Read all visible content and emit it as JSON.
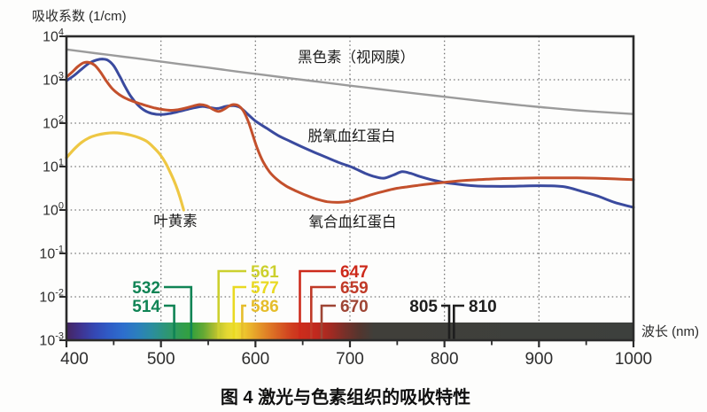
{
  "chart_data": {
    "type": "line",
    "title": "图 4 激光与色素组织的吸收特性",
    "xlabel": "波长 (nm)",
    "ylabel": "吸收系数 (1/cm)",
    "x_range": [
      400,
      1000
    ],
    "y_scale": "log",
    "y_range": [
      0.001,
      10000
    ],
    "x_ticks": [
      400,
      500,
      600,
      700,
      800,
      900,
      1000
    ],
    "x_minor_ticks": [
      450,
      550,
      650,
      750,
      850,
      950
    ],
    "y_tick_exponents": [
      4,
      3,
      2,
      1,
      0,
      -1,
      -2,
      -3
    ],
    "grid": "dotted",
    "series": [
      {
        "id": "melanin",
        "label": "黑色素（视网膜）",
        "color": "#9b9b9b",
        "stroke_width": 2.4,
        "points": [
          [
            400,
            5000
          ],
          [
            430,
            4100
          ],
          [
            460,
            3400
          ],
          [
            490,
            2800
          ],
          [
            520,
            2300
          ],
          [
            550,
            1900
          ],
          [
            580,
            1550
          ],
          [
            610,
            1280
          ],
          [
            640,
            1060
          ],
          [
            670,
            880
          ],
          [
            700,
            730
          ],
          [
            730,
            610
          ],
          [
            760,
            510
          ],
          [
            790,
            430
          ],
          [
            820,
            360
          ],
          [
            850,
            305
          ],
          [
            880,
            260
          ],
          [
            910,
            225
          ],
          [
            940,
            198
          ],
          [
            970,
            178
          ],
          [
            1000,
            162
          ]
        ]
      },
      {
        "id": "deoxyhemoglobin",
        "label": "脱氧血红蛋白",
        "color": "#3a4a9e",
        "stroke_width": 3,
        "points": [
          [
            400,
            950
          ],
          [
            408,
            1250
          ],
          [
            416,
            1750
          ],
          [
            424,
            2400
          ],
          [
            432,
            2850
          ],
          [
            438,
            3000
          ],
          [
            444,
            2800
          ],
          [
            450,
            2100
          ],
          [
            456,
            1250
          ],
          [
            462,
            700
          ],
          [
            468,
            420
          ],
          [
            475,
            270
          ],
          [
            482,
            200
          ],
          [
            490,
            168
          ],
          [
            500,
            158
          ],
          [
            510,
            168
          ],
          [
            520,
            188
          ],
          [
            532,
            218
          ],
          [
            543,
            242
          ],
          [
            552,
            228
          ],
          [
            560,
            218
          ],
          [
            569,
            244
          ],
          [
            577,
            252
          ],
          [
            584,
            228
          ],
          [
            591,
            168
          ],
          [
            600,
            112
          ],
          [
            612,
            76
          ],
          [
            624,
            52
          ],
          [
            637,
            38
          ],
          [
            650,
            28
          ],
          [
            663,
            21
          ],
          [
            676,
            16
          ],
          [
            690,
            12
          ],
          [
            703,
            9.5
          ],
          [
            716,
            7
          ],
          [
            727,
            5.8
          ],
          [
            736,
            5.4
          ],
          [
            746,
            6.4
          ],
          [
            755,
            7.6
          ],
          [
            764,
            7
          ],
          [
            774,
            5.9
          ],
          [
            786,
            5
          ],
          [
            800,
            4.3
          ],
          [
            815,
            3.9
          ],
          [
            832,
            3.6
          ],
          [
            850,
            3.5
          ],
          [
            870,
            3.5
          ],
          [
            890,
            3.6
          ],
          [
            910,
            3.6
          ],
          [
            928,
            3.4
          ],
          [
            945,
            2.7
          ],
          [
            962,
            2.1
          ],
          [
            980,
            1.5
          ],
          [
            1000,
            1.15
          ]
        ]
      },
      {
        "id": "oxyhemoglobin",
        "label": "氧合血红蛋白",
        "color": "#c3502c",
        "stroke_width": 3,
        "points": [
          [
            400,
            1150
          ],
          [
            406,
            1500
          ],
          [
            412,
            2000
          ],
          [
            418,
            2450
          ],
          [
            424,
            2500
          ],
          [
            430,
            2150
          ],
          [
            436,
            1500
          ],
          [
            442,
            950
          ],
          [
            448,
            640
          ],
          [
            455,
            470
          ],
          [
            462,
            380
          ],
          [
            470,
            320
          ],
          [
            478,
            280
          ],
          [
            486,
            248
          ],
          [
            494,
            222
          ],
          [
            502,
            206
          ],
          [
            510,
            198
          ],
          [
            518,
            204
          ],
          [
            526,
            222
          ],
          [
            534,
            248
          ],
          [
            541,
            268
          ],
          [
            548,
            252
          ],
          [
            555,
            208
          ],
          [
            561,
            186
          ],
          [
            567,
            210
          ],
          [
            572,
            248
          ],
          [
            577,
            268
          ],
          [
            582,
            252
          ],
          [
            587,
            195
          ],
          [
            592,
            115
          ],
          [
            597,
            55
          ],
          [
            602,
            26
          ],
          [
            608,
            13
          ],
          [
            615,
            7.5
          ],
          [
            623,
            5
          ],
          [
            632,
            3.6
          ],
          [
            642,
            2.8
          ],
          [
            653,
            2.2
          ],
          [
            664,
            1.8
          ],
          [
            676,
            1.55
          ],
          [
            688,
            1.5
          ],
          [
            700,
            1.6
          ],
          [
            712,
            1.9
          ],
          [
            724,
            2.3
          ],
          [
            736,
            2.7
          ],
          [
            748,
            3.1
          ],
          [
            760,
            3.4
          ],
          [
            772,
            3.7
          ],
          [
            785,
            4
          ],
          [
            798,
            4.3
          ],
          [
            812,
            4.6
          ],
          [
            828,
            4.9
          ],
          [
            845,
            5.1
          ],
          [
            862,
            5.3
          ],
          [
            880,
            5.4
          ],
          [
            900,
            5.5
          ],
          [
            920,
            5.5
          ],
          [
            940,
            5.5
          ],
          [
            960,
            5.4
          ],
          [
            980,
            5.2
          ],
          [
            1000,
            5
          ]
        ]
      },
      {
        "id": "lutein",
        "label": "叶黄素",
        "color": "#eec743",
        "stroke_width": 3.2,
        "points": [
          [
            400,
            16
          ],
          [
            408,
            25
          ],
          [
            416,
            36
          ],
          [
            424,
            46
          ],
          [
            432,
            53
          ],
          [
            441,
            58
          ],
          [
            450,
            60
          ],
          [
            459,
            58
          ],
          [
            468,
            53
          ],
          [
            477,
            46
          ],
          [
            485,
            38
          ],
          [
            492,
            28
          ],
          [
            499,
            19
          ],
          [
            505,
            12
          ],
          [
            511,
            6.5
          ],
          [
            516,
            3.6
          ],
          [
            520,
            2
          ],
          [
            524,
            1
          ]
        ]
      }
    ],
    "laser_lines": [
      {
        "label": "514",
        "wavelength_nm": 514,
        "color": "#108455",
        "group": "green",
        "tier": 3
      },
      {
        "label": "532",
        "wavelength_nm": 532,
        "color": "#108455",
        "group": "green",
        "tier": 2
      },
      {
        "label": "561",
        "wavelength_nm": 561,
        "color": "#ccd02e",
        "group": "yellow",
        "tier": 1
      },
      {
        "label": "577",
        "wavelength_nm": 577,
        "color": "#e9d922",
        "group": "yellow",
        "tier": 2
      },
      {
        "label": "586",
        "wavelength_nm": 586,
        "color": "#e5bd2b",
        "group": "yellow",
        "tier": 3
      },
      {
        "label": "647",
        "wavelength_nm": 647,
        "color": "#cd2a1b",
        "group": "red",
        "tier": 1
      },
      {
        "label": "659",
        "wavelength_nm": 659,
        "color": "#c03a28",
        "group": "red",
        "tier": 2
      },
      {
        "label": "670",
        "wavelength_nm": 670,
        "color": "#9e4534",
        "group": "red",
        "tier": 3
      },
      {
        "label": "805",
        "wavelength_nm": 805,
        "color": "#1e1e1e",
        "group": "nir-left",
        "tier": 3
      },
      {
        "label": "810",
        "wavelength_nm": 810,
        "color": "#1e1e1e",
        "group": "nir-right",
        "tier": 3
      }
    ],
    "spectrum_bar": {
      "stops": [
        {
          "nm": 400,
          "color": "#452561"
        },
        {
          "nm": 415,
          "color": "#3f3390"
        },
        {
          "nm": 430,
          "color": "#3448b4"
        },
        {
          "nm": 445,
          "color": "#2f5cc6"
        },
        {
          "nm": 460,
          "color": "#2d6ecd"
        },
        {
          "nm": 475,
          "color": "#2b7fbe"
        },
        {
          "nm": 490,
          "color": "#2b8da0"
        },
        {
          "nm": 505,
          "color": "#2d9678"
        },
        {
          "nm": 520,
          "color": "#309c52"
        },
        {
          "nm": 532,
          "color": "#33a03c"
        },
        {
          "nm": 545,
          "color": "#64a934"
        },
        {
          "nm": 558,
          "color": "#b5c02f"
        },
        {
          "nm": 570,
          "color": "#e4d832"
        },
        {
          "nm": 580,
          "color": "#efdf33"
        },
        {
          "nm": 590,
          "color": "#ecc02d"
        },
        {
          "nm": 602,
          "color": "#e59c29"
        },
        {
          "nm": 614,
          "color": "#df7b26"
        },
        {
          "nm": 626,
          "color": "#d75c23"
        },
        {
          "nm": 638,
          "color": "#d03e1f"
        },
        {
          "nm": 650,
          "color": "#cb2c1c"
        },
        {
          "nm": 665,
          "color": "#c0291e"
        },
        {
          "nm": 680,
          "color": "#a12a22"
        },
        {
          "nm": 695,
          "color": "#763029"
        },
        {
          "nm": 710,
          "color": "#54352e"
        },
        {
          "nm": 725,
          "color": "#403f3a"
        },
        {
          "nm": 1000,
          "color": "#3d403d"
        }
      ]
    },
    "colors": {
      "axis": "#2b2b2b",
      "gridline": "#747474",
      "melanin": "#9b9b9b",
      "deoxyhemoglobin": "#3a4a9e",
      "oxyhemoglobin": "#c3502c",
      "lutein": "#eec743"
    }
  }
}
